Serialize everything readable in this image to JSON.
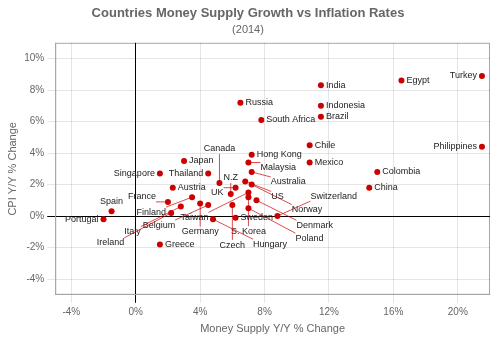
{
  "chart_data": {
    "type": "scatter",
    "title": "Countries Money Supply Growth vs Inflation Rates",
    "subtitle": "(2014)",
    "xlabel": "Money Supply Y/Y % Change",
    "ylabel": "CPI Y/Y % Change",
    "xlim": [
      -5,
      22
    ],
    "ylim": [
      -5,
      11
    ],
    "xticks": [
      {
        "value": -4,
        "label": "-4%"
      },
      {
        "value": 0,
        "label": "0%"
      },
      {
        "value": 4,
        "label": "4%"
      },
      {
        "value": 8,
        "label": "8%"
      },
      {
        "value": 12,
        "label": "12%"
      },
      {
        "value": 16,
        "label": "16%"
      },
      {
        "value": 20,
        "label": "20%"
      }
    ],
    "yticks": [
      {
        "value": -4,
        "label": "-4%"
      },
      {
        "value": -2,
        "label": "-2%"
      },
      {
        "value": 0,
        "label": "0%"
      },
      {
        "value": 2,
        "label": "2%"
      },
      {
        "value": 4,
        "label": "4%"
      },
      {
        "value": 6,
        "label": "6%"
      },
      {
        "value": 8,
        "label": "8%"
      },
      {
        "value": 10,
        "label": "10%"
      }
    ],
    "grid": true,
    "color": "#cc0000",
    "marker": "circle",
    "point_labels": [
      "Turkey",
      "Egypt",
      "India",
      "Russia",
      "Indonesia",
      "South Africa",
      "Brazil",
      "Philippines",
      "Hong Kong",
      "Chile",
      "Japan",
      "Malaysia",
      "Mexico",
      "Singapore",
      "Thailand",
      "Australia",
      "Colombia",
      "Austria",
      "Canada",
      "US",
      "UK",
      "Norway",
      "China",
      "N.Z",
      "Taiwan",
      "Finland",
      "S. Korea",
      "France",
      "Germany",
      "Denmark",
      "Belgium",
      "Italy",
      "Czech",
      "Poland",
      "Spain",
      "Ireland",
      "Portugal",
      "Hungary",
      "Sweden",
      "Switzerland",
      "Greece"
    ],
    "x": [
      21.5,
      16.5,
      11.5,
      6.5,
      11.5,
      7.8,
      11.5,
      21.5,
      7.2,
      10.8,
      3.0,
      7.0,
      10.8,
      1.5,
      4.5,
      7.2,
      15.0,
      2.3,
      5.2,
      6.8,
      6.2,
      7.2,
      14.5,
      5.9,
      7.0,
      3.5,
      7.0,
      2.0,
      4.0,
      7.5,
      4.5,
      2.8,
      6.0,
      7.0,
      -1.5,
      2.2,
      -2.0,
      4.8,
      6.2,
      8.8,
      1.5
    ],
    "values": [
      8.9,
      8.6,
      8.3,
      7.2,
      7.0,
      6.1,
      6.3,
      4.4,
      3.9,
      4.5,
      3.5,
      3.4,
      3.4,
      2.7,
      2.7,
      2.8,
      2.8,
      1.8,
      2.1,
      2.2,
      1.8,
      2.0,
      1.8,
      1.4,
      1.5,
      1.2,
      1.2,
      0.9,
      0.8,
      1.0,
      0.7,
      0.6,
      0.7,
      0.5,
      0.3,
      0.2,
      -0.2,
      -0.2,
      -0.1,
      0.0,
      -1.8
    ]
  }
}
